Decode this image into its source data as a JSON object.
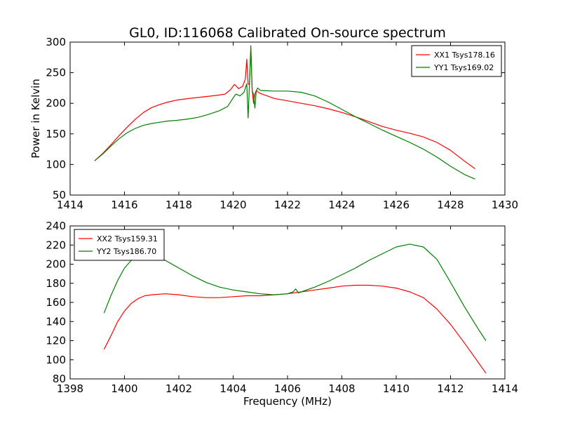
{
  "figure": {
    "title": "GL0, ID:116068 Calibrated On-source spectrum",
    "xlabel": "Frequency (MHz)"
  },
  "chart_data": [
    {
      "type": "line",
      "title": "GL0, ID:116068 Calibrated On-source spectrum",
      "xlabel": "",
      "ylabel": "Power in Kelvin",
      "xlim": [
        1414,
        1430
      ],
      "ylim": [
        50,
        300
      ],
      "xticks": [
        1414,
        1416,
        1418,
        1420,
        1422,
        1424,
        1426,
        1428,
        1430
      ],
      "yticks": [
        50,
        100,
        150,
        200,
        250,
        300
      ],
      "grid": false,
      "legend": "top-right",
      "series": [
        {
          "name": "XX1 Tsys178.16",
          "color": "#ff0000",
          "x": [
            1414.9,
            1415.2,
            1415.5,
            1415.8,
            1416.1,
            1416.4,
            1416.7,
            1417.0,
            1417.3,
            1417.6,
            1417.9,
            1418.2,
            1418.6,
            1419.0,
            1419.4,
            1419.7,
            1419.9,
            1420.05,
            1420.2,
            1420.35,
            1420.45,
            1420.5,
            1420.55,
            1420.6,
            1420.65,
            1420.7,
            1420.75,
            1420.8,
            1420.85,
            1420.9,
            1421.0,
            1421.2,
            1421.5,
            1422.0,
            1422.5,
            1423.0,
            1423.5,
            1424.0,
            1424.5,
            1425.0,
            1425.5,
            1426.0,
            1426.5,
            1427.0,
            1427.5,
            1428.0,
            1428.5,
            1428.9
          ],
          "y": [
            106,
            118,
            132,
            147,
            161,
            174,
            185,
            193,
            198,
            202,
            205,
            207,
            209,
            211,
            213,
            215,
            222,
            231,
            224,
            228,
            240,
            272,
            232,
            230,
            291,
            222,
            200,
            215,
            221,
            219,
            216,
            213,
            208,
            204,
            200,
            196,
            191,
            185,
            178,
            170,
            162,
            156,
            151,
            145,
            136,
            123,
            106,
            93
          ]
        },
        {
          "name": "YY1 Tsys169.02",
          "color": "#008000",
          "x": [
            1414.9,
            1415.2,
            1415.5,
            1415.8,
            1416.1,
            1416.4,
            1416.7,
            1417.0,
            1417.3,
            1417.6,
            1417.9,
            1418.3,
            1418.7,
            1419.1,
            1419.5,
            1419.8,
            1420.0,
            1420.1,
            1420.25,
            1420.4,
            1420.5,
            1420.55,
            1420.6,
            1420.65,
            1420.7,
            1420.75,
            1420.8,
            1420.85,
            1420.9,
            1421.0,
            1421.5,
            1422.0,
            1422.5,
            1423.0,
            1423.5,
            1424.0,
            1424.5,
            1425.0,
            1425.5,
            1426.0,
            1426.5,
            1427.0,
            1427.5,
            1428.0,
            1428.5,
            1428.9
          ],
          "y": [
            106,
            117,
            130,
            142,
            152,
            159,
            164,
            167,
            169,
            171,
            172,
            174,
            177,
            182,
            188,
            195,
            209,
            215,
            212,
            218,
            232,
            176,
            230,
            294,
            220,
            215,
            192,
            220,
            225,
            221,
            220,
            220,
            218,
            212,
            202,
            190,
            178,
            167,
            156,
            146,
            136,
            125,
            112,
            97,
            84,
            76
          ]
        }
      ]
    },
    {
      "type": "line",
      "title": "",
      "xlabel": "Frequency (MHz)",
      "ylabel": "",
      "xlim": [
        1398,
        1414
      ],
      "ylim": [
        80,
        240
      ],
      "xticks": [
        1398,
        1400,
        1402,
        1404,
        1406,
        1408,
        1410,
        1412,
        1414
      ],
      "yticks": [
        80,
        100,
        120,
        140,
        160,
        180,
        200,
        220,
        240
      ],
      "grid": false,
      "legend": "top-left",
      "series": [
        {
          "name": "XX2 Tsys159.31",
          "color": "#ff0000",
          "x": [
            1399.25,
            1399.5,
            1399.75,
            1400.0,
            1400.25,
            1400.5,
            1400.75,
            1401.0,
            1401.5,
            1402.0,
            1402.5,
            1403.0,
            1403.5,
            1404.0,
            1404.5,
            1405.0,
            1405.5,
            1406.0,
            1406.5,
            1407.0,
            1407.5,
            1408.0,
            1408.5,
            1409.0,
            1409.5,
            1410.0,
            1410.5,
            1411.0,
            1411.5,
            1412.0,
            1412.5,
            1413.0,
            1413.3
          ],
          "y": [
            111,
            125,
            140,
            151,
            159,
            164,
            167,
            168,
            169,
            168,
            166,
            165,
            165,
            166,
            167,
            167,
            168,
            169,
            171,
            173,
            175,
            177,
            178,
            178,
            177,
            175,
            171,
            165,
            153,
            137,
            118,
            98,
            86
          ]
        },
        {
          "name": "YY2 Tsys186.70",
          "color": "#008000",
          "x": [
            1399.25,
            1399.5,
            1399.75,
            1400.0,
            1400.25,
            1400.5,
            1400.75,
            1401.0,
            1401.5,
            1402.0,
            1402.5,
            1403.0,
            1403.5,
            1404.0,
            1404.5,
            1405.0,
            1405.5,
            1406.0,
            1406.2,
            1406.3,
            1406.4,
            1406.5,
            1407.0,
            1407.5,
            1408.0,
            1408.5,
            1409.0,
            1409.5,
            1410.0,
            1410.5,
            1411.0,
            1411.5,
            1412.0,
            1412.5,
            1413.0,
            1413.3
          ],
          "y": [
            149,
            167,
            183,
            196,
            204,
            208,
            210,
            209,
            204,
            196,
            188,
            181,
            176,
            173,
            171,
            169,
            168,
            169,
            171,
            174,
            170,
            171,
            176,
            182,
            189,
            196,
            204,
            211,
            218,
            221,
            218,
            205,
            181,
            156,
            133,
            120
          ]
        }
      ]
    }
  ]
}
